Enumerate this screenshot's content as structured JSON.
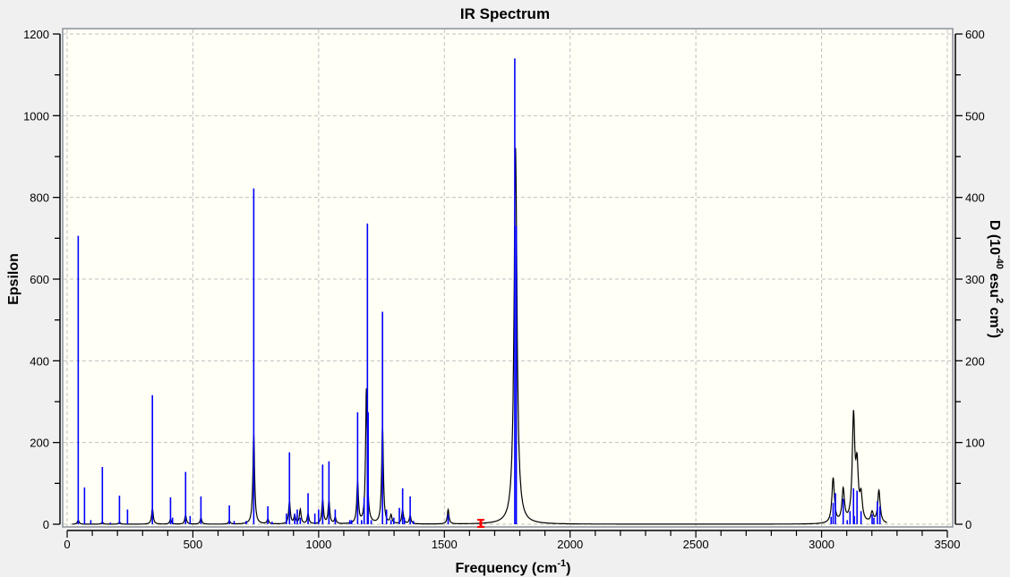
{
  "chart_data": {
    "type": "line",
    "title": "IR Spectrum",
    "xlabel": "Frequency (cm",
    "xlabel_sup": "-1",
    "xlabel_end": ")",
    "ylabel": "Epsilon",
    "y2label_parts": [
      "D (10",
      "-40",
      " esu",
      "2",
      " cm",
      "2",
      ")"
    ],
    "xlim": [
      0,
      3500
    ],
    "ylim": [
      0,
      1200
    ],
    "y2lim": [
      0,
      600
    ],
    "x_ticks": [
      0,
      500,
      1000,
      1500,
      2000,
      2500,
      3000,
      3500
    ],
    "y_ticks": [
      0,
      200,
      400,
      600,
      800,
      1000,
      1200
    ],
    "y2_ticks": [
      0,
      100,
      200,
      300,
      400,
      500,
      600
    ],
    "grid": true,
    "colors": {
      "spectrum": "#000000",
      "sticks": "#0000ff",
      "marker": "#ff0000",
      "plot_bg": "#fffff6"
    },
    "marker_frequency": 1645,
    "series": [
      {
        "kind": "spectrum-curve-peaks",
        "axis": "left",
        "points": [
          [
            44,
            10
          ],
          [
            140,
            5
          ],
          [
            208,
            5
          ],
          [
            339,
            38
          ],
          [
            411,
            12
          ],
          [
            471,
            22
          ],
          [
            532,
            15
          ],
          [
            645,
            8
          ],
          [
            742,
            220
          ],
          [
            798,
            12
          ],
          [
            884,
            55
          ],
          [
            905,
            20
          ],
          [
            927,
            35
          ],
          [
            958,
            25
          ],
          [
            1016,
            60
          ],
          [
            1041,
            55
          ],
          [
            1066,
            15
          ],
          [
            1155,
            100
          ],
          [
            1190,
            330
          ],
          [
            1254,
            240
          ],
          [
            1288,
            20
          ],
          [
            1334,
            35
          ],
          [
            1364,
            20
          ],
          [
            1515,
            35
          ],
          [
            1783,
            921
          ],
          [
            3046,
            110
          ],
          [
            3086,
            80
          ],
          [
            3127,
            255
          ],
          [
            3141,
            125
          ],
          [
            3157,
            60
          ],
          [
            3201,
            25
          ],
          [
            3228,
            80
          ]
        ]
      },
      {
        "kind": "sticks",
        "axis": "right",
        "points": [
          [
            44,
            353
          ],
          [
            69,
            45
          ],
          [
            94,
            5
          ],
          [
            140,
            70
          ],
          [
            172,
            2
          ],
          [
            208,
            35
          ],
          [
            240,
            18
          ],
          [
            339,
            158
          ],
          [
            411,
            33
          ],
          [
            419,
            8
          ],
          [
            471,
            64
          ],
          [
            489,
            10
          ],
          [
            532,
            34
          ],
          [
            645,
            23
          ],
          [
            664,
            4
          ],
          [
            712,
            4
          ],
          [
            742,
            411
          ],
          [
            798,
            22
          ],
          [
            815,
            3
          ],
          [
            872,
            13
          ],
          [
            884,
            88
          ],
          [
            905,
            13
          ],
          [
            915,
            18
          ],
          [
            927,
            8
          ],
          [
            958,
            38
          ],
          [
            985,
            13
          ],
          [
            1000,
            18
          ],
          [
            1016,
            73
          ],
          [
            1041,
            77
          ],
          [
            1066,
            18
          ],
          [
            1124,
            5
          ],
          [
            1131,
            5
          ],
          [
            1155,
            137
          ],
          [
            1171,
            5
          ],
          [
            1181,
            33
          ],
          [
            1194,
            368
          ],
          [
            1197,
            137
          ],
          [
            1209,
            5
          ],
          [
            1254,
            260
          ],
          [
            1270,
            18
          ],
          [
            1288,
            5
          ],
          [
            1299,
            8
          ],
          [
            1321,
            20
          ],
          [
            1334,
            44
          ],
          [
            1341,
            8
          ],
          [
            1364,
            34
          ],
          [
            1377,
            4
          ],
          [
            1515,
            12
          ],
          [
            1780,
            570
          ],
          [
            1786,
            365
          ],
          [
            3038,
            9
          ],
          [
            3046,
            26
          ],
          [
            3055,
            38
          ],
          [
            3086,
            31
          ],
          [
            3102,
            5
          ],
          [
            3113,
            16
          ],
          [
            3127,
            44
          ],
          [
            3130,
            10
          ],
          [
            3141,
            41
          ],
          [
            3157,
            16
          ],
          [
            3201,
            12
          ],
          [
            3208,
            8
          ],
          [
            3222,
            28
          ],
          [
            3232,
            22
          ]
        ]
      }
    ]
  }
}
